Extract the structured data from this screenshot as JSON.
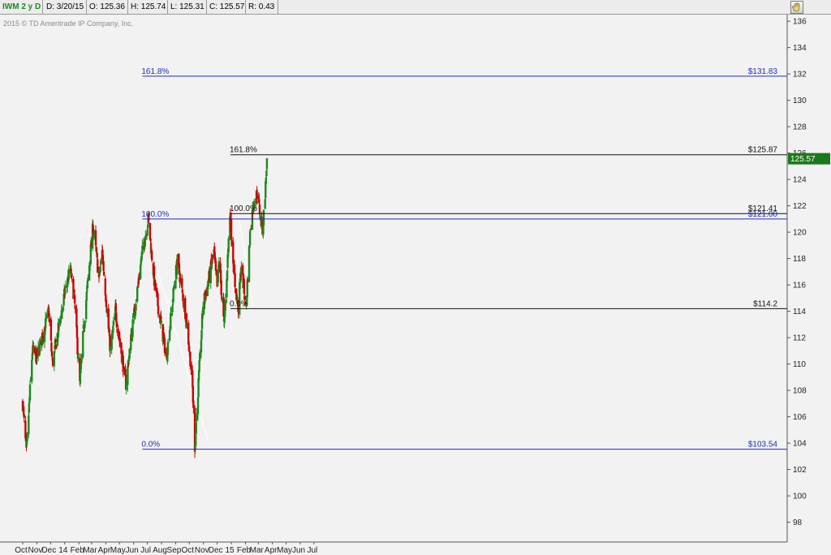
{
  "header": {
    "symbol": "IWM 2 y D",
    "date": "D: 3/20/15",
    "open": "O: 125.36",
    "high": "H: 125.74",
    "low": "L: 125.31",
    "close": "C: 125.57",
    "range": "R: 0.43",
    "copyright": "2015 © TD Ameritrade IP Company, Inc."
  },
  "colors": {
    "up": "#1a8a1a",
    "down": "#cc0000",
    "fib_blue": "#1f2fbf",
    "fib_black": "#111111",
    "price_badge": "#1a7a1a"
  },
  "chart_data": {
    "type": "candlestick",
    "ylim": [
      96.5,
      136.5
    ],
    "y_ticks": [
      98,
      100,
      102,
      104,
      106,
      108,
      110,
      112,
      114,
      116,
      118,
      120,
      122,
      124,
      126,
      128,
      130,
      132,
      134,
      136
    ],
    "x_ticks": [
      "Oct",
      "Nov",
      "Dec",
      "14",
      "Feb",
      "Mar",
      "Apr",
      "May",
      "Jun",
      "Jul",
      "Aug",
      "Sep",
      "Oct",
      "Nov",
      "Dec",
      "15",
      "Feb",
      "Mar",
      "Apr",
      "May",
      "Jun",
      "Jul"
    ],
    "last_price": "125.57",
    "anchors": [
      [
        "2013-10-01",
        107.0
      ],
      [
        "2013-10-09",
        103.2
      ],
      [
        "2013-10-22",
        111.0
      ],
      [
        "2013-11-01",
        110.5
      ],
      [
        "2013-11-27",
        114.0
      ],
      [
        "2013-12-05",
        110.0
      ],
      [
        "2013-12-31",
        115.2
      ],
      [
        "2014-01-13",
        117.2
      ],
      [
        "2014-01-22",
        115.0
      ],
      [
        "2014-02-03",
        108.5
      ],
      [
        "2014-02-12",
        113.0
      ],
      [
        "2014-03-04",
        120.5
      ],
      [
        "2014-03-17",
        116.5
      ],
      [
        "2014-03-24",
        118.5
      ],
      [
        "2014-04-11",
        111.0
      ],
      [
        "2014-04-22",
        114.0
      ],
      [
        "2014-05-15",
        108.5
      ],
      [
        "2014-05-28",
        112.5
      ],
      [
        "2014-06-20",
        118.5
      ],
      [
        "2014-07-03",
        121.0
      ],
      [
        "2014-07-17",
        116.0
      ],
      [
        "2014-07-31",
        113.0
      ],
      [
        "2014-08-12",
        110.5
      ],
      [
        "2014-08-29",
        116.0
      ],
      [
        "2014-09-05",
        117.8
      ],
      [
        "2014-09-24",
        113.5
      ],
      [
        "2014-10-07",
        109.0
      ],
      [
        "2014-10-13",
        103.8
      ],
      [
        "2014-10-31",
        114.5
      ],
      [
        "2014-11-10",
        116.0
      ],
      [
        "2014-11-24",
        118.5
      ],
      [
        "2014-12-01",
        115.5
      ],
      [
        "2014-12-05",
        118.0
      ],
      [
        "2014-12-16",
        112.8
      ],
      [
        "2014-12-29",
        121.4
      ],
      [
        "2015-01-09",
        116.0
      ],
      [
        "2015-01-16",
        114.3
      ],
      [
        "2015-01-23",
        117.5
      ],
      [
        "2015-02-02",
        114.2
      ],
      [
        "2015-02-12",
        120.5
      ],
      [
        "2015-02-20",
        122.5
      ],
      [
        "2015-02-27",
        123.0
      ],
      [
        "2015-03-06",
        121.0
      ],
      [
        "2015-03-11",
        120.3
      ],
      [
        "2015-03-17",
        123.5
      ],
      [
        "2015-03-20",
        125.6
      ]
    ],
    "fib_blue": {
      "start": "2014-06-20",
      "levels": [
        {
          "pct": "161.8%",
          "label": "$131.83",
          "value": 131.83
        },
        {
          "pct": "100.0%",
          "label": "$121.00",
          "value": 121.0
        },
        {
          "pct": "0.0%",
          "label": "$103.54",
          "value": 103.54
        }
      ]
    },
    "fib_black": {
      "start": "2014-12-30",
      "levels": [
        {
          "pct": "161.8%",
          "label": "$125.87",
          "value": 125.87
        },
        {
          "pct": "100.0%",
          "label": "$121.41",
          "value": 121.41
        },
        {
          "pct": "0.0%",
          "label": "$114.2",
          "value": 114.2
        }
      ]
    },
    "trendlines": [
      {
        "from": [
          "2014-07-03",
          119.5
        ],
        "to": [
          "2014-11-10",
          104.3
        ],
        "color": "#ffffff"
      },
      {
        "from": [
          "2015-01-16",
          121.5
        ],
        "to": [
          "2015-02-17",
          114.5
        ],
        "color": "#ffffff"
      }
    ]
  }
}
